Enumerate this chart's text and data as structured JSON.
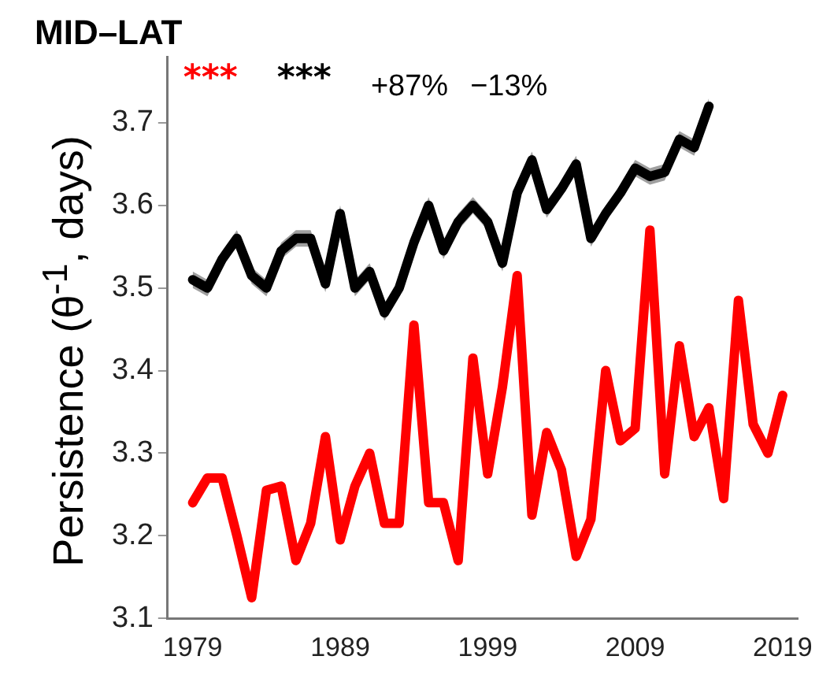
{
  "chart_data": {
    "type": "line",
    "title": "MID–LAT",
    "ylabel": "Persistence (θ$^{-1}$, days)",
    "x": [
      1979,
      1980,
      1981,
      1982,
      1983,
      1984,
      1985,
      1986,
      1987,
      1988,
      1989,
      1990,
      1991,
      1992,
      1993,
      1994,
      1995,
      1996,
      1997,
      1998,
      1999,
      2000,
      2001,
      2002,
      2003,
      2004,
      2005,
      2006,
      2007,
      2008,
      2009,
      2010,
      2011,
      2012,
      2013,
      2014,
      2015,
      2016,
      2017,
      2018,
      2019
    ],
    "series": [
      {
        "color": "#ff0000",
        "values": [
          3.24,
          3.27,
          3.27,
          3.2,
          3.125,
          3.255,
          3.26,
          3.17,
          3.215,
          3.32,
          3.195,
          3.26,
          3.3,
          3.215,
          3.215,
          3.455,
          3.24,
          3.24,
          3.17,
          3.415,
          3.275,
          3.38,
          3.515,
          3.225,
          3.325,
          3.28,
          3.175,
          3.22,
          3.4,
          3.315,
          3.33,
          3.57,
          3.275,
          3.43,
          3.32,
          3.355,
          3.245,
          3.485,
          3.335,
          3.3,
          3.37
        ]
      },
      {
        "color": "#000000",
        "x": [
          1979,
          1980,
          1981,
          1982,
          1983,
          1984,
          1985,
          1986,
          1987,
          1988,
          1989,
          1990,
          1991,
          1992,
          1993,
          1994,
          1995,
          1996,
          1997,
          1998,
          1999,
          2000,
          2001,
          2002,
          2003,
          2004,
          2005,
          2006,
          2007,
          2008,
          2009,
          2010,
          2011,
          2012,
          2013,
          2014
        ],
        "values": [
          3.51,
          3.5,
          3.535,
          3.56,
          3.515,
          3.5,
          3.545,
          3.56,
          3.56,
          3.505,
          3.59,
          3.5,
          3.52,
          3.47,
          3.5,
          3.555,
          3.6,
          3.545,
          3.58,
          3.6,
          3.58,
          3.53,
          3.615,
          3.655,
          3.595,
          3.62,
          3.65,
          3.56,
          3.59,
          3.615,
          3.645,
          3.635,
          3.64,
          3.68,
          3.67,
          3.72
        ],
        "lower": [
          3.5,
          3.49,
          3.525,
          3.55,
          3.505,
          3.49,
          3.535,
          3.55,
          3.55,
          3.495,
          3.58,
          3.49,
          3.51,
          3.46,
          3.49,
          3.545,
          3.59,
          3.535,
          3.57,
          3.59,
          3.57,
          3.52,
          3.605,
          3.645,
          3.585,
          3.61,
          3.64,
          3.55,
          3.58,
          3.605,
          3.635,
          3.625,
          3.63,
          3.67,
          3.66,
          3.71
        ],
        "upper": [
          3.52,
          3.51,
          3.545,
          3.57,
          3.525,
          3.51,
          3.555,
          3.57,
          3.57,
          3.515,
          3.6,
          3.51,
          3.53,
          3.48,
          3.51,
          3.565,
          3.61,
          3.555,
          3.59,
          3.61,
          3.59,
          3.54,
          3.625,
          3.665,
          3.605,
          3.63,
          3.66,
          3.57,
          3.6,
          3.625,
          3.655,
          3.645,
          3.65,
          3.69,
          3.68,
          3.73
        ]
      }
    ],
    "annotations": [
      "***",
      "***",
      "+87%",
      "−13%"
    ],
    "xlim": [
      1977.3,
      2020
    ],
    "xticks": [
      1979,
      1989,
      1999,
      2009,
      2019
    ],
    "ylim": [
      3.1,
      3.78
    ],
    "yticks": [
      3.1,
      3.2,
      3.3,
      3.4,
      3.5,
      3.6,
      3.7
    ],
    "grid": false,
    "legend": false,
    "marker": "none",
    "line_style": "solid"
  }
}
